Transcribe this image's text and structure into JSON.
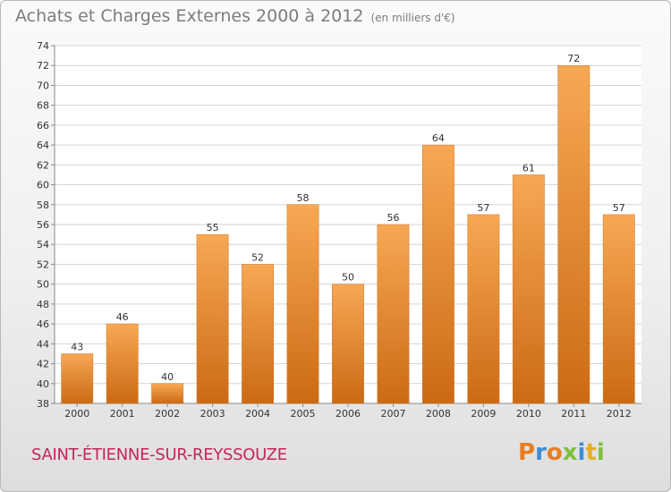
{
  "title": "Achats et Charges Externes 2000 à 2012",
  "unit": "(en milliers d'€)",
  "commune": "SAINT-ÉTIENNE-SUR-REYSSOUZE",
  "logo": {
    "text": "Proxiti",
    "letters": [
      {
        "ch": "P",
        "color": "#e67e22"
      },
      {
        "ch": "r",
        "color": "#3b8ed6"
      },
      {
        "ch": "o",
        "color": "#e67e22"
      },
      {
        "ch": "x",
        "color": "#7fbf3f"
      },
      {
        "ch": "i",
        "color": "#3b8ed6"
      },
      {
        "ch": "t",
        "color": "#e6b022"
      },
      {
        "ch": "i",
        "color": "#7fbf3f"
      }
    ]
  },
  "colors": {
    "bar_light": "#f7a854",
    "bar_dark": "#cc6a14",
    "grid": "#d6d6d6",
    "axis_text": "#333333",
    "title_text": "#7d7d7d",
    "commune_text": "#c4245d"
  },
  "chart_data": {
    "type": "bar",
    "categories": [
      "2000",
      "2001",
      "2002",
      "2003",
      "2004",
      "2005",
      "2006",
      "2007",
      "2008",
      "2009",
      "2010",
      "2011",
      "2012"
    ],
    "values": [
      43,
      46,
      40,
      55,
      52,
      58,
      50,
      56,
      64,
      57,
      61,
      72,
      57
    ],
    "ylim": [
      38,
      74
    ],
    "yticks": [
      38,
      40,
      42,
      44,
      46,
      48,
      50,
      52,
      54,
      56,
      58,
      60,
      62,
      64,
      66,
      68,
      70,
      72,
      74
    ],
    "grid": true,
    "data_labels": true
  }
}
